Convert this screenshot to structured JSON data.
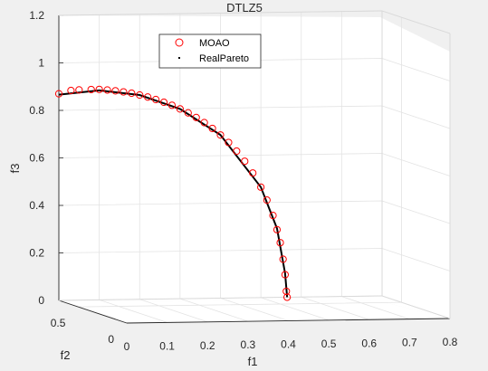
{
  "chart_data": {
    "type": "scatter",
    "title": "DTLZ5",
    "xlabel": "f1",
    "ylabel": "f2",
    "zlabel": "f3",
    "x_ticks": [
      "0",
      "0.1",
      "0.2",
      "0.3",
      "0.4",
      "0.5",
      "0.6",
      "0.7",
      "0.8"
    ],
    "y_ticks": [
      "0",
      "0.5"
    ],
    "z_ticks": [
      "0",
      "0.2",
      "0.4",
      "0.6",
      "0.8",
      "1",
      "1.2"
    ],
    "xlim": [
      0,
      0.8
    ],
    "ylim": [
      0,
      0.7
    ],
    "zlim": [
      0,
      1.2
    ],
    "grid": true,
    "legend_position": "top-left",
    "series": [
      {
        "name": "MOAO",
        "marker": "open-circle",
        "color": "#ff0000",
        "points": [
          [
            0.0,
            0.0,
            0.87
          ],
          [
            0.03,
            0.0,
            0.883
          ],
          [
            0.05,
            0.0,
            0.885
          ],
          [
            0.08,
            0.0,
            0.886
          ],
          [
            0.1,
            0.0,
            0.886
          ],
          [
            0.12,
            0.0,
            0.883
          ],
          [
            0.14,
            0.0,
            0.879
          ],
          [
            0.16,
            0.0,
            0.874
          ],
          [
            0.18,
            0.0,
            0.868
          ],
          [
            0.2,
            0.0,
            0.86
          ],
          [
            0.22,
            0.0,
            0.851
          ],
          [
            0.24,
            0.0,
            0.84
          ],
          [
            0.26,
            0.0,
            0.828
          ],
          [
            0.28,
            0.0,
            0.815
          ],
          [
            0.3,
            0.0,
            0.799
          ],
          [
            0.32,
            0.0,
            0.782
          ],
          [
            0.34,
            0.0,
            0.762
          ],
          [
            0.36,
            0.0,
            0.74
          ],
          [
            0.38,
            0.0,
            0.715
          ],
          [
            0.4,
            0.0,
            0.687
          ],
          [
            0.42,
            0.0,
            0.655
          ],
          [
            0.44,
            0.0,
            0.618
          ],
          [
            0.46,
            0.0,
            0.575
          ],
          [
            0.48,
            0.0,
            0.525
          ],
          [
            0.5,
            0.0,
            0.465
          ],
          [
            0.515,
            0.0,
            0.41
          ],
          [
            0.53,
            0.0,
            0.345
          ],
          [
            0.54,
            0.0,
            0.285
          ],
          [
            0.548,
            0.0,
            0.23
          ],
          [
            0.555,
            0.0,
            0.16
          ],
          [
            0.56,
            0.0,
            0.095
          ],
          [
            0.563,
            0.0,
            0.025
          ],
          [
            0.565,
            0.0,
            0.0
          ]
        ]
      },
      {
        "name": "RealPareto",
        "marker": "dot",
        "color": "#000000",
        "points": [
          [
            0.0,
            0.0,
            0.866
          ],
          [
            0.1,
            0.0,
            0.882
          ],
          [
            0.2,
            0.0,
            0.86
          ],
          [
            0.3,
            0.0,
            0.799
          ],
          [
            0.4,
            0.0,
            0.687
          ],
          [
            0.5,
            0.0,
            0.465
          ],
          [
            0.54,
            0.0,
            0.29
          ],
          [
            0.56,
            0.0,
            0.1
          ],
          [
            0.565,
            0.0,
            0.0
          ]
        ]
      }
    ],
    "legend": [
      {
        "label": "MOAO",
        "marker": "open-circle",
        "color": "#ff0000"
      },
      {
        "label": "RealPareto",
        "marker": "dot",
        "color": "#000000"
      }
    ]
  }
}
